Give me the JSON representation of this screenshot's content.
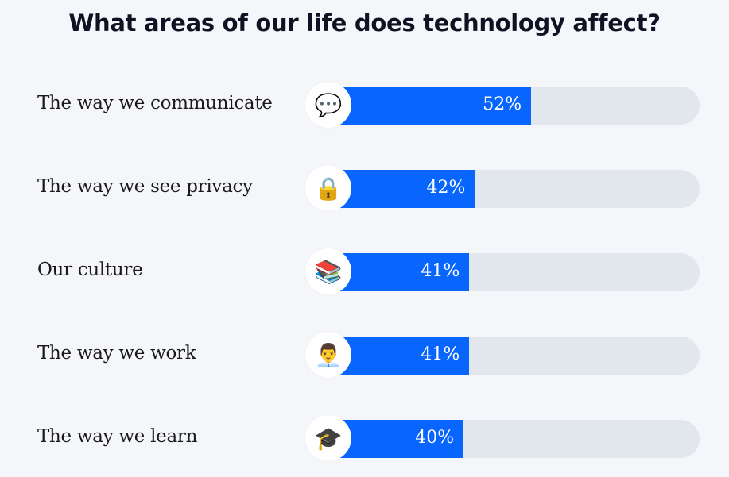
{
  "chart_data": {
    "type": "bar",
    "orientation": "horizontal",
    "title": "What areas of our life does technology affect?",
    "categories": [
      "The way we communicate",
      "The way we see privacy",
      "Our culture",
      "The way we work",
      "The way we learn"
    ],
    "values": [
      52,
      42,
      41,
      41,
      40
    ],
    "value_labels": [
      "52%",
      "42%",
      "41%",
      "41%",
      "40%"
    ],
    "icons": [
      "speech-bubble-icon",
      "lock-icon",
      "books-icon",
      "office-worker-icon",
      "graduation-cap-icon"
    ],
    "unit": "%",
    "xlim": [
      0,
      82
    ],
    "grid": false,
    "colors": {
      "bar": "#0866ff",
      "track": "#e2e6ed",
      "background": "#f4f6f9"
    }
  }
}
